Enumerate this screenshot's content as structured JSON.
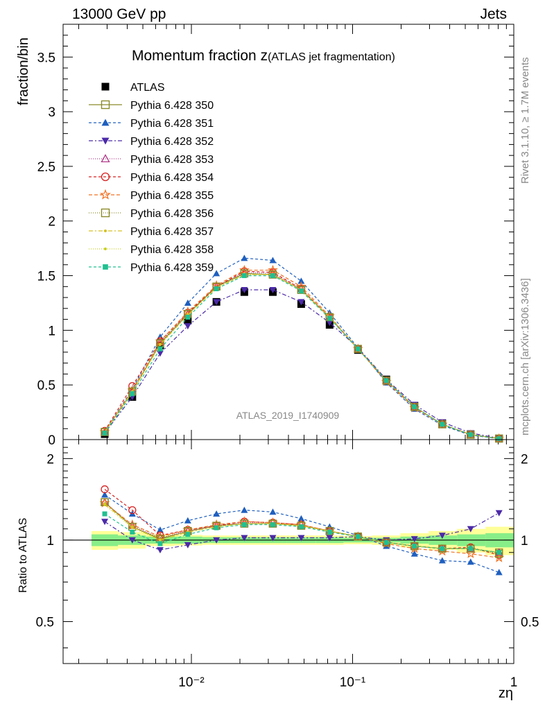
{
  "header": {
    "left": "13000 GeV pp",
    "right": "Jets"
  },
  "side_labels": {
    "top": "Rivet 3.1.10, ≥ 1.7M events",
    "bottom": "mcplots.cern.ch [arXiv:1306.3436]"
  },
  "watermark": "ATLAS_2019_I1740909",
  "colors": {
    "ATLAS": "#000000",
    "350": "#8a8a2a",
    "351": "#1f5fbf",
    "352": "#4b2aa8",
    "353": "#b23a8a",
    "354": "#d62020",
    "355": "#f07020",
    "356": "#8a8a2a",
    "357": "#d6c020",
    "358": "#c8d020",
    "359": "#20c090",
    "band_inner": "#88ee88",
    "band_outer": "#ffff99"
  },
  "chart_data": [
    {
      "type": "scatter",
      "title_main": "Momentum fraction z",
      "title_sub": "(ATLAS jet fragmentation)",
      "ylabel": "fraction/bin",
      "xlabel": "zη",
      "xscale": "log",
      "xlim": [
        0.0016,
        1.0
      ],
      "ylim": [
        0,
        3.8
      ],
      "yticks": [
        "0",
        "0.5",
        "1",
        "1.5",
        "2",
        "2.5",
        "3",
        "3.5"
      ],
      "legend_position": "top-left",
      "x": [
        0.0029,
        0.0043,
        0.0064,
        0.0095,
        0.0143,
        0.0213,
        0.032,
        0.048,
        0.072,
        0.108,
        0.162,
        0.242,
        0.36,
        0.54,
        0.81
      ],
      "series": [
        {
          "name": "ATLAS",
          "key": "ATLAS",
          "marker": "square-filled",
          "dash": "none",
          "values": [
            0.05,
            0.39,
            0.86,
            1.09,
            1.26,
            1.35,
            1.35,
            1.24,
            1.05,
            0.82,
            0.55,
            0.31,
            0.15,
            0.05,
            0.01
          ]
        },
        {
          "name": "Pythia 6.428 350",
          "key": "350",
          "marker": "square-open",
          "dash": "solid",
          "values": [
            0.07,
            0.44,
            0.88,
            1.15,
            1.4,
            1.52,
            1.51,
            1.37,
            1.12,
            0.83,
            0.54,
            0.3,
            0.14,
            0.045,
            0.01
          ]
        },
        {
          "name": "Pythia 6.428 351",
          "key": "351",
          "marker": "triangle-up-filled",
          "dash": "4,3",
          "values": [
            0.07,
            0.46,
            0.94,
            1.25,
            1.52,
            1.66,
            1.64,
            1.45,
            1.16,
            0.84,
            0.52,
            0.28,
            0.13,
            0.04,
            0.008
          ]
        },
        {
          "name": "Pythia 6.428 352",
          "key": "352",
          "marker": "triangle-down-filled",
          "dash": "6,3,2,3",
          "values": [
            0.06,
            0.39,
            0.79,
            1.04,
            1.26,
            1.37,
            1.37,
            1.26,
            1.07,
            0.84,
            0.55,
            0.32,
            0.16,
            0.06,
            0.013
          ]
        },
        {
          "name": "Pythia 6.428 353",
          "key": "353",
          "marker": "triangle-up-open",
          "dash": "1,2",
          "values": [
            0.07,
            0.44,
            0.89,
            1.15,
            1.4,
            1.53,
            1.52,
            1.38,
            1.12,
            0.83,
            0.54,
            0.3,
            0.14,
            0.046,
            0.01
          ]
        },
        {
          "name": "Pythia 6.428 354",
          "key": "354",
          "marker": "circle-open",
          "dash": "4,3",
          "values": [
            0.08,
            0.49,
            0.9,
            1.16,
            1.4,
            1.54,
            1.53,
            1.38,
            1.12,
            0.83,
            0.54,
            0.3,
            0.14,
            0.047,
            0.009
          ]
        },
        {
          "name": "Pythia 6.428 355",
          "key": "355",
          "marker": "star-open",
          "dash": "5,3",
          "values": [
            0.07,
            0.45,
            0.9,
            1.17,
            1.41,
            1.55,
            1.55,
            1.4,
            1.13,
            0.83,
            0.53,
            0.29,
            0.14,
            0.044,
            0.009
          ]
        },
        {
          "name": "Pythia 6.428 356",
          "key": "356",
          "marker": "square-open",
          "dash": "1,2",
          "values": [
            0.07,
            0.44,
            0.88,
            1.15,
            1.4,
            1.52,
            1.51,
            1.37,
            1.12,
            0.83,
            0.54,
            0.3,
            0.14,
            0.045,
            0.009
          ]
        },
        {
          "name": "Pythia 6.428 357",
          "key": "357",
          "marker": "dot",
          "dash": "6,3,2,3",
          "values": [
            0.07,
            0.44,
            0.87,
            1.14,
            1.39,
            1.51,
            1.51,
            1.37,
            1.12,
            0.83,
            0.54,
            0.3,
            0.14,
            0.046,
            0.01
          ]
        },
        {
          "name": "Pythia 6.428 358",
          "key": "358",
          "marker": "dot",
          "dash": "1,2",
          "values": [
            0.07,
            0.43,
            0.87,
            1.14,
            1.39,
            1.51,
            1.51,
            1.37,
            1.12,
            0.83,
            0.54,
            0.3,
            0.14,
            0.046,
            0.01
          ]
        },
        {
          "name": "Pythia 6.428 359",
          "key": "359",
          "marker": "square-filled-small",
          "dash": "4,3",
          "values": [
            0.06,
            0.42,
            0.83,
            1.12,
            1.38,
            1.5,
            1.5,
            1.36,
            1.11,
            0.83,
            0.54,
            0.3,
            0.14,
            0.045,
            0.009
          ]
        }
      ]
    },
    {
      "type": "line",
      "ylabel": "Ratio to ATLAS",
      "xscale": "log",
      "xlim": [
        0.0016,
        1.0
      ],
      "ylim": [
        0.35,
        2.35
      ],
      "yticks": [
        "0.5",
        "1",
        "2"
      ],
      "xticks": [
        "10⁻²",
        "10⁻¹",
        "1"
      ],
      "bands": {
        "edges": [
          0.0024,
          0.0035,
          0.0052,
          0.0078,
          0.0117,
          0.0175,
          0.026,
          0.039,
          0.059,
          0.088,
          0.132,
          0.198,
          0.297,
          0.445,
          0.667,
          1.0
        ],
        "inner": [
          0.05,
          0.04,
          0.03,
          0.03,
          0.025,
          0.025,
          0.025,
          0.025,
          0.025,
          0.02,
          0.02,
          0.03,
          0.04,
          0.05,
          0.06
        ],
        "outer": [
          0.08,
          0.07,
          0.05,
          0.045,
          0.04,
          0.04,
          0.04,
          0.04,
          0.04,
          0.035,
          0.04,
          0.06,
          0.08,
          0.1,
          0.12
        ]
      },
      "x": [
        0.0029,
        0.0043,
        0.0064,
        0.0095,
        0.0143,
        0.0213,
        0.032,
        0.048,
        0.072,
        0.108,
        0.162,
        0.242,
        0.36,
        0.54,
        0.81
      ],
      "series": [
        {
          "name": "Pythia 6.428 350",
          "key": "350",
          "marker": "square-open",
          "dash": "solid",
          "values": [
            1.38,
            1.12,
            1.01,
            1.08,
            1.13,
            1.15,
            1.15,
            1.13,
            1.08,
            1.03,
            0.98,
            0.95,
            0.93,
            0.93,
            0.9
          ]
        },
        {
          "name": "Pythia 6.428 351",
          "key": "351",
          "marker": "triangle-up-filled",
          "dash": "4,3",
          "values": [
            1.47,
            1.25,
            1.09,
            1.18,
            1.25,
            1.29,
            1.27,
            1.2,
            1.12,
            1.04,
            0.95,
            0.89,
            0.84,
            0.83,
            0.76
          ]
        },
        {
          "name": "Pythia 6.428 352",
          "key": "352",
          "marker": "triangle-down-filled",
          "dash": "6,3,2,3",
          "values": [
            1.17,
            1.0,
            0.92,
            0.96,
            1.0,
            1.02,
            1.02,
            1.02,
            1.02,
            1.03,
            1.0,
            1.01,
            1.04,
            1.1,
            1.26
          ]
        },
        {
          "name": "Pythia 6.428 353",
          "key": "353",
          "marker": "triangle-up-open",
          "dash": "1,2",
          "values": [
            1.38,
            1.13,
            1.02,
            1.08,
            1.13,
            1.16,
            1.16,
            1.14,
            1.08,
            1.03,
            0.98,
            0.95,
            0.93,
            0.93,
            0.9
          ]
        },
        {
          "name": "Pythia 6.428 354",
          "key": "354",
          "marker": "circle-open",
          "dash": "4,3",
          "values": [
            1.54,
            1.29,
            1.04,
            1.09,
            1.13,
            1.17,
            1.16,
            1.14,
            1.08,
            1.03,
            0.98,
            0.95,
            0.93,
            0.94,
            0.88
          ]
        },
        {
          "name": "Pythia 6.428 355",
          "key": "355",
          "marker": "star-open",
          "dash": "5,3",
          "values": [
            1.37,
            1.14,
            1.03,
            1.09,
            1.14,
            1.17,
            1.16,
            1.14,
            1.08,
            1.03,
            0.97,
            0.93,
            0.91,
            0.89,
            0.86
          ]
        },
        {
          "name": "Pythia 6.428 356",
          "key": "356",
          "marker": "square-open",
          "dash": "1,2",
          "values": [
            1.38,
            1.12,
            1.01,
            1.08,
            1.13,
            1.15,
            1.15,
            1.13,
            1.08,
            1.03,
            0.98,
            0.95,
            0.93,
            0.93,
            0.89
          ]
        },
        {
          "name": "Pythia 6.428 357",
          "key": "357",
          "marker": "dot",
          "dash": "6,3,2,3",
          "values": [
            1.36,
            1.12,
            1.0,
            1.07,
            1.12,
            1.15,
            1.15,
            1.13,
            1.08,
            1.03,
            0.98,
            0.95,
            0.93,
            0.93,
            0.9
          ]
        },
        {
          "name": "Pythia 6.428 358",
          "key": "358",
          "marker": "dot",
          "dash": "1,2",
          "values": [
            1.35,
            1.11,
            1.0,
            1.07,
            1.12,
            1.15,
            1.15,
            1.13,
            1.08,
            1.03,
            0.98,
            0.95,
            0.93,
            0.93,
            0.9
          ]
        },
        {
          "name": "Pythia 6.428 359",
          "key": "359",
          "marker": "square-filled-small",
          "dash": "4,3",
          "values": [
            1.25,
            1.07,
            0.97,
            1.05,
            1.11,
            1.14,
            1.14,
            1.12,
            1.07,
            1.03,
            0.98,
            0.95,
            0.93,
            0.93,
            0.9
          ]
        }
      ]
    }
  ]
}
